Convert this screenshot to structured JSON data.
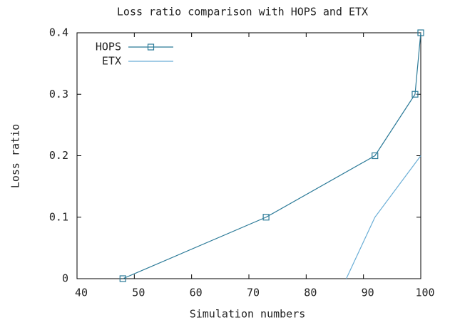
{
  "chart_data": {
    "type": "line",
    "title": "Loss ratio comparison with HOPS and ETX",
    "x_label": "Simulation numbers",
    "y_label": "Loss ratio",
    "xlim": [
      40,
      100
    ],
    "xticks": [
      40,
      50,
      60,
      70,
      80,
      90,
      100
    ],
    "ylim": [
      0,
      0.4
    ],
    "yticks": [
      0,
      0.1,
      0.2,
      0.3,
      0.4
    ],
    "legend": "top-left",
    "series": [
      {
        "name": "HOPS",
        "color": "#2b7a98",
        "marker": "square",
        "x": [
          48,
          73,
          92,
          99,
          100
        ],
        "values": [
          0,
          0.1,
          0.2,
          0.3,
          0.4
        ]
      },
      {
        "name": "ETX",
        "color": "#6aaed6",
        "marker": "none",
        "x": [
          87,
          92,
          100
        ],
        "values": [
          0,
          0.1,
          0.2
        ]
      }
    ]
  }
}
